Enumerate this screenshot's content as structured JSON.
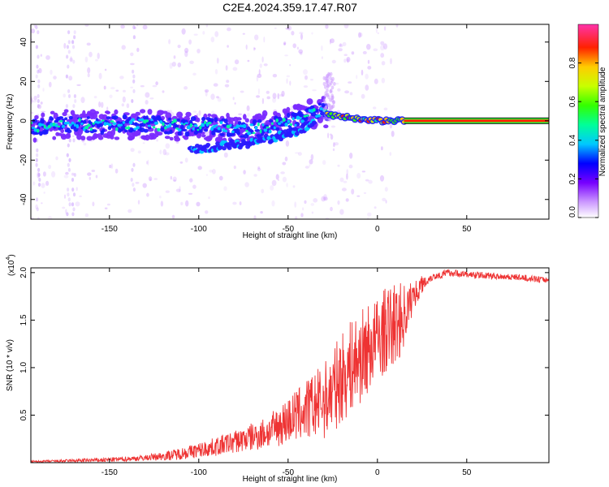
{
  "title": "C2E4.2024.359.17.47.R07",
  "chart_data": [
    {
      "type": "heatmap",
      "name": "spectrogram",
      "xlabel": "Height of straight line (km)",
      "ylabel": "Frequency (Hz)",
      "xlim": [
        -194,
        96
      ],
      "ylim": [
        -50,
        49
      ],
      "xticks": [
        -150,
        -100,
        -50,
        0,
        50
      ],
      "xtick_labels": [
        "-150",
        "-100",
        "-50",
        "0",
        "50"
      ],
      "yticks": [
        -40,
        -20,
        0,
        20,
        40
      ],
      "ytick_labels": [
        "-40",
        "-20",
        "0",
        "20",
        "40"
      ],
      "ridge": {
        "x": [
          -194,
          -175,
          -150,
          -125,
          -100,
          -90,
          -80,
          -70,
          -60,
          -50,
          -40,
          -35,
          -30,
          -28,
          -20,
          -10,
          0,
          10,
          15,
          20,
          50,
          96
        ],
        "freq": [
          -3,
          -2,
          -2,
          -2,
          -3,
          -3,
          -4,
          -4,
          -3,
          -1,
          2,
          4,
          5,
          3,
          2,
          1,
          0,
          0,
          0,
          0,
          0,
          0
        ]
      },
      "lower_branch": {
        "x": [
          -105,
          -90,
          -80,
          -70,
          -60,
          -50,
          -40,
          -35
        ],
        "freq": [
          -15,
          -13,
          -12,
          -11,
          -9,
          -7,
          -3,
          0
        ]
      },
      "colorbar": {
        "label": "Normalized spectral amplitude",
        "range": [
          0.0,
          1.0
        ],
        "ticks": [
          0.0,
          0.2,
          0.4,
          0.6,
          0.8
        ],
        "tick_labels": [
          "0.0",
          "0.2",
          "0.4",
          "0.6",
          "0.8"
        ]
      }
    },
    {
      "type": "line",
      "name": "snr",
      "xlabel": "Height of straight line (km)",
      "ylabel": "SNR (10 * v/v)",
      "scale_label": "(x10",
      "scale_exponent": "4",
      "series_color": "#ee3333",
      "xlim": [
        -194,
        96
      ],
      "ylim": [
        0,
        2.05
      ],
      "xticks": [
        -150,
        -100,
        -50,
        0,
        50
      ],
      "xtick_labels": [
        "-150",
        "-100",
        "-50",
        "0",
        "50"
      ],
      "yticks": [
        0.5,
        1.0,
        1.5,
        2.0
      ],
      "ytick_labels": [
        "0.5",
        "1.0",
        "1.5",
        "2.0"
      ],
      "trend": {
        "x": [
          -194,
          -170,
          -150,
          -130,
          -115,
          -100,
          -90,
          -80,
          -70,
          -60,
          -50,
          -40,
          -30,
          -25,
          -20,
          -15,
          -10,
          -5,
          0,
          5,
          10,
          15,
          20,
          25,
          30,
          40,
          50,
          60,
          70,
          80,
          90,
          96
        ],
        "y": [
          0.01,
          0.02,
          0.03,
          0.05,
          0.08,
          0.13,
          0.17,
          0.22,
          0.27,
          0.33,
          0.45,
          0.55,
          0.65,
          0.75,
          0.9,
          1.0,
          1.1,
          1.2,
          1.3,
          1.4,
          1.45,
          1.55,
          1.75,
          1.88,
          1.95,
          2.0,
          1.98,
          1.97,
          1.96,
          1.95,
          1.93,
          1.92
        ]
      },
      "noise": {
        "x": [
          -194,
          -130,
          -100,
          -80,
          -60,
          -50,
          -40,
          -30,
          -20,
          -10,
          0,
          10,
          15,
          20,
          30,
          96
        ],
        "amp": [
          0.01,
          0.03,
          0.08,
          0.12,
          0.18,
          0.25,
          0.32,
          0.4,
          0.48,
          0.5,
          0.45,
          0.45,
          0.35,
          0.15,
          0.04,
          0.03
        ]
      }
    }
  ]
}
